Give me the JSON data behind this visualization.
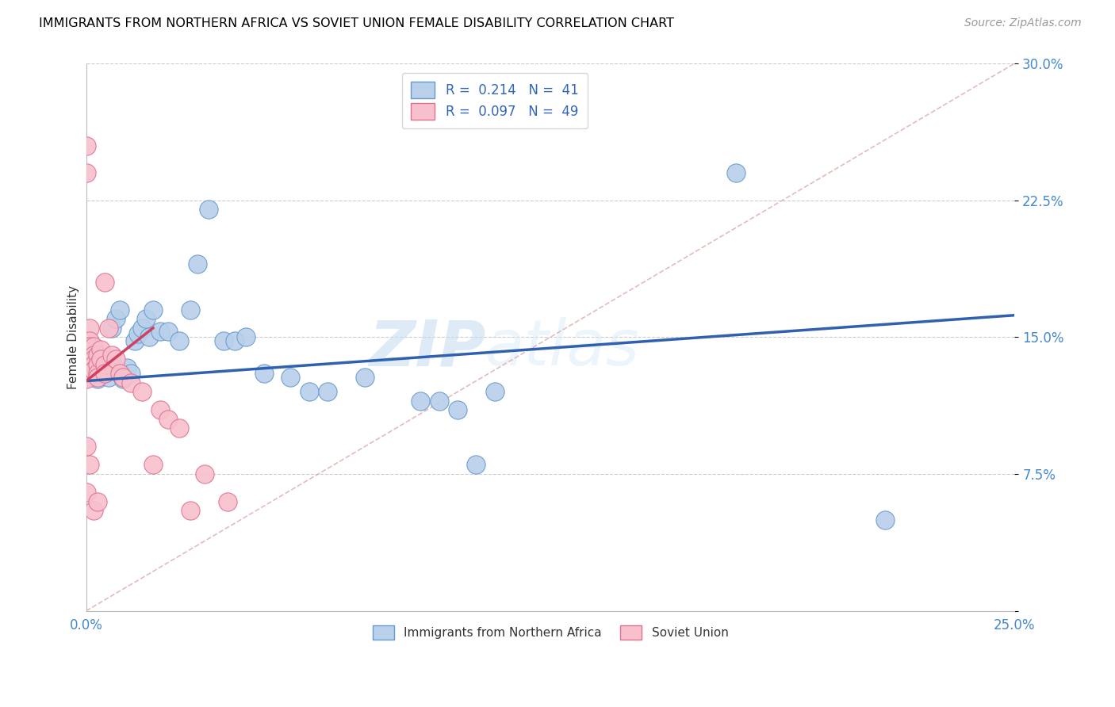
{
  "title": "IMMIGRANTS FROM NORTHERN AFRICA VS SOVIET UNION FEMALE DISABILITY CORRELATION CHART",
  "source": "Source: ZipAtlas.com",
  "ylabel": "Female Disability",
  "x_min": 0.0,
  "x_max": 0.25,
  "y_min": 0.0,
  "y_max": 0.3,
  "x_ticks": [
    0.0,
    0.05,
    0.1,
    0.15,
    0.2,
    0.25
  ],
  "x_tick_labels": [
    "0.0%",
    "",
    "",
    "",
    "",
    "25.0%"
  ],
  "y_ticks": [
    0.0,
    0.075,
    0.15,
    0.225,
    0.3
  ],
  "y_tick_labels": [
    "",
    "7.5%",
    "15.0%",
    "22.5%",
    "30.0%"
  ],
  "color_blue_fill": "#b8d0ea",
  "color_blue_edge": "#6699cc",
  "color_pink_fill": "#f7c0cc",
  "color_pink_edge": "#e07090",
  "color_blue_line": "#3060b0",
  "color_pink_line": "#d04060",
  "color_diag": "#ddaaaa",
  "blue_line_x0": 0.0,
  "blue_line_y0": 0.126,
  "blue_line_x1": 0.25,
  "blue_line_y1": 0.162,
  "pink_line_x0": 0.0,
  "pink_line_y0": 0.126,
  "pink_line_x1": 0.018,
  "pink_line_y1": 0.155,
  "blue_scatter_x": [
    0.001,
    0.002,
    0.003,
    0.003,
    0.004,
    0.005,
    0.006,
    0.006,
    0.007,
    0.008,
    0.009,
    0.01,
    0.011,
    0.012,
    0.013,
    0.014,
    0.015,
    0.016,
    0.017,
    0.018,
    0.02,
    0.022,
    0.025,
    0.028,
    0.03,
    0.033,
    0.037,
    0.04,
    0.043,
    0.048,
    0.055,
    0.06,
    0.065,
    0.075,
    0.09,
    0.095,
    0.1,
    0.105,
    0.11,
    0.175,
    0.215
  ],
  "blue_scatter_y": [
    0.13,
    0.128,
    0.133,
    0.127,
    0.135,
    0.13,
    0.132,
    0.128,
    0.155,
    0.16,
    0.165,
    0.127,
    0.133,
    0.13,
    0.148,
    0.152,
    0.155,
    0.16,
    0.15,
    0.165,
    0.153,
    0.153,
    0.148,
    0.165,
    0.19,
    0.22,
    0.148,
    0.148,
    0.15,
    0.13,
    0.128,
    0.12,
    0.12,
    0.128,
    0.115,
    0.115,
    0.11,
    0.08,
    0.12,
    0.24,
    0.05
  ],
  "pink_scatter_x": [
    0.0,
    0.0,
    0.0,
    0.0,
    0.0,
    0.0,
    0.0,
    0.0,
    0.0,
    0.0,
    0.0,
    0.0,
    0.001,
    0.001,
    0.001,
    0.001,
    0.001,
    0.001,
    0.002,
    0.002,
    0.002,
    0.002,
    0.002,
    0.003,
    0.003,
    0.003,
    0.003,
    0.004,
    0.004,
    0.005,
    0.005,
    0.006,
    0.007,
    0.008,
    0.009,
    0.01,
    0.012,
    0.015,
    0.018,
    0.02,
    0.022,
    0.025,
    0.028,
    0.032,
    0.038,
    0.001,
    0.002,
    0.003,
    0.005
  ],
  "pink_scatter_y": [
    0.255,
    0.24,
    0.145,
    0.14,
    0.138,
    0.135,
    0.132,
    0.13,
    0.128,
    0.127,
    0.09,
    0.065,
    0.155,
    0.148,
    0.145,
    0.142,
    0.138,
    0.133,
    0.145,
    0.14,
    0.138,
    0.135,
    0.132,
    0.14,
    0.135,
    0.13,
    0.128,
    0.143,
    0.138,
    0.135,
    0.13,
    0.155,
    0.14,
    0.138,
    0.13,
    0.128,
    0.125,
    0.12,
    0.08,
    0.11,
    0.105,
    0.1,
    0.055,
    0.075,
    0.06,
    0.08,
    0.055,
    0.06,
    0.18
  ]
}
